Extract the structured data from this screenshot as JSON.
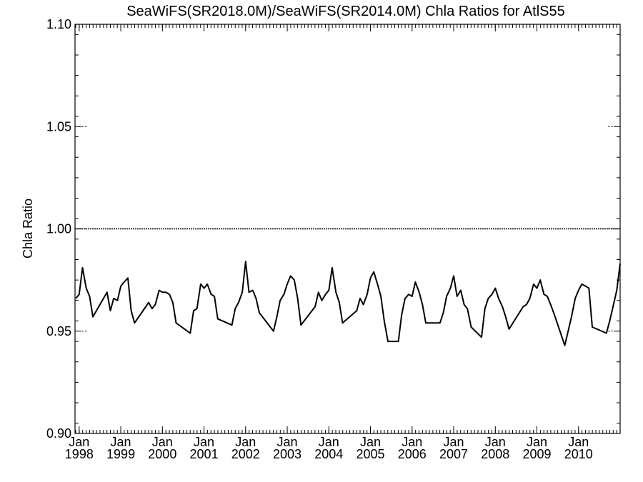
{
  "chart_data": {
    "type": "line",
    "title": "SeaWiFS(SR2018.0M)/SeaWiFS(SR2014.0M)  Chla Ratios for AtlS55",
    "xlabel": "",
    "ylabel": "Chla Ratio",
    "ylim": [
      0.9,
      1.1
    ],
    "xlim": [
      1997.9,
      2011.0
    ],
    "grid": false,
    "y_ticks": [
      "0.90",
      "0.95",
      "1.00",
      "1.05",
      "1.10"
    ],
    "x_ticks": [
      {
        "year": 1998,
        "month": "Jan",
        "label": "1998"
      },
      {
        "year": 1999,
        "month": "Jan",
        "label": "1999"
      },
      {
        "year": 2000,
        "month": "Jan",
        "label": "2000"
      },
      {
        "year": 2001,
        "month": "Jan",
        "label": "2001"
      },
      {
        "year": 2002,
        "month": "Jan",
        "label": "2002"
      },
      {
        "year": 2003,
        "month": "Jan",
        "label": "2003"
      },
      {
        "year": 2004,
        "month": "Jan",
        "label": "2004"
      },
      {
        "year": 2005,
        "month": "Jan",
        "label": "2005"
      },
      {
        "year": 2006,
        "month": "Jan",
        "label": "2006"
      },
      {
        "year": 2007,
        "month": "Jan",
        "label": "2007"
      },
      {
        "year": 2008,
        "month": "Jan",
        "label": "2008"
      },
      {
        "year": 2009,
        "month": "Jan",
        "label": "2009"
      },
      {
        "year": 2010,
        "month": "Jan",
        "label": "2010"
      }
    ],
    "reference_line": 1.0,
    "series": [
      {
        "x": [
          1997.92,
          1998.0,
          1998.08,
          1998.17,
          1998.25,
          1998.33,
          1998.5,
          1998.67,
          1998.75,
          1998.83,
          1998.92,
          1999.0,
          1999.08,
          1999.17,
          1999.25,
          1999.33,
          1999.5,
          1999.67,
          1999.75,
          1999.83,
          1999.92,
          2000.0,
          2000.08,
          2000.17,
          2000.25,
          2000.33,
          2000.67,
          2000.75,
          2000.83,
          2000.92,
          2001.0,
          2001.08,
          2001.17,
          2001.25,
          2001.33,
          2001.67,
          2001.75,
          2001.83,
          2001.92,
          2002.0,
          2002.08,
          2002.17,
          2002.25,
          2002.33,
          2002.67,
          2002.75,
          2002.83,
          2002.92,
          2003.0,
          2003.08,
          2003.17,
          2003.25,
          2003.33,
          2003.67,
          2003.75,
          2003.83,
          2003.92,
          2004.0,
          2004.08,
          2004.17,
          2004.25,
          2004.33,
          2004.67,
          2004.75,
          2004.83,
          2004.92,
          2005.0,
          2005.08,
          2005.17,
          2005.25,
          2005.33,
          2005.42,
          2005.67,
          2005.75,
          2005.83,
          2005.92,
          2006.0,
          2006.08,
          2006.17,
          2006.25,
          2006.33,
          2006.67,
          2006.75,
          2006.83,
          2006.92,
          2007.0,
          2007.08,
          2007.17,
          2007.25,
          2007.33,
          2007.42,
          2007.67,
          2007.75,
          2007.83,
          2007.92,
          2008.0,
          2008.08,
          2008.17,
          2008.25,
          2008.33,
          2008.67,
          2008.75,
          2008.83,
          2008.92,
          2009.0,
          2009.08,
          2009.17,
          2009.25,
          2009.33,
          2009.42,
          2009.67,
          2009.75,
          2009.83,
          2009.92,
          2010.0,
          2010.08,
          2010.17,
          2010.25,
          2010.33,
          2010.67,
          2010.75,
          2010.83,
          2010.92,
          2011.0
        ],
        "y": [
          0.966,
          0.968,
          0.981,
          0.971,
          0.967,
          0.957,
          0.963,
          0.969,
          0.96,
          0.966,
          0.965,
          0.972,
          0.974,
          0.976,
          0.96,
          0.954,
          0.959,
          0.964,
          0.961,
          0.963,
          0.97,
          0.969,
          0.969,
          0.968,
          0.964,
          0.954,
          0.949,
          0.96,
          0.961,
          0.973,
          0.971,
          0.973,
          0.968,
          0.967,
          0.956,
          0.953,
          0.961,
          0.964,
          0.969,
          0.984,
          0.969,
          0.97,
          0.966,
          0.959,
          0.95,
          0.957,
          0.965,
          0.968,
          0.973,
          0.977,
          0.975,
          0.966,
          0.953,
          0.962,
          0.969,
          0.965,
          0.968,
          0.97,
          0.981,
          0.969,
          0.964,
          0.954,
          0.96,
          0.966,
          0.963,
          0.968,
          0.976,
          0.979,
          0.973,
          0.967,
          0.955,
          0.945,
          0.945,
          0.958,
          0.966,
          0.968,
          0.967,
          0.974,
          0.969,
          0.963,
          0.954,
          0.954,
          0.959,
          0.967,
          0.971,
          0.977,
          0.967,
          0.97,
          0.963,
          0.961,
          0.952,
          0.947,
          0.961,
          0.966,
          0.968,
          0.971,
          0.966,
          0.962,
          0.957,
          0.951,
          0.962,
          0.963,
          0.966,
          0.973,
          0.971,
          0.975,
          0.968,
          0.967,
          0.963,
          0.958,
          0.943,
          0.95,
          0.957,
          0.966,
          0.97,
          0.973,
          0.972,
          0.971,
          0.952,
          0.949,
          0.955,
          0.962,
          0.97,
          0.983
        ]
      }
    ]
  }
}
